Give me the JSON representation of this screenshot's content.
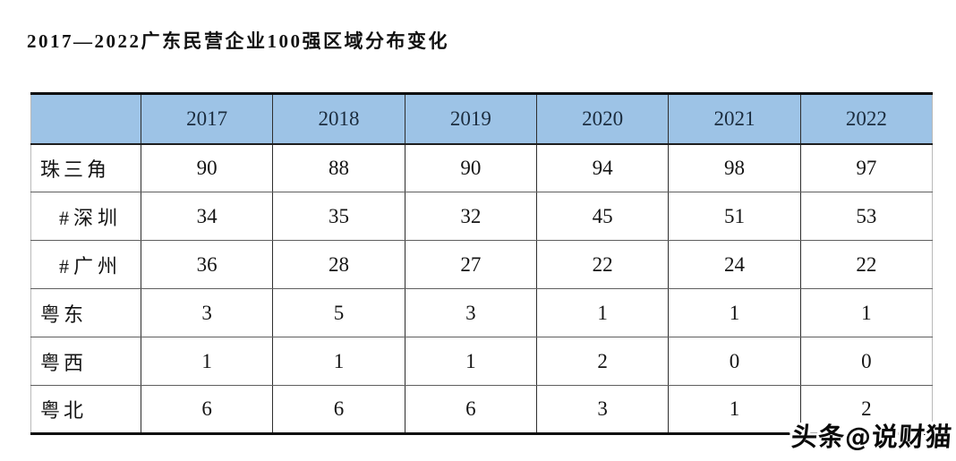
{
  "page": {
    "title": "2017—2022广东民营企业100强区域分布变化"
  },
  "chart_data": {
    "type": "table",
    "title": "2017—2022广东民营企业100强区域分布变化",
    "corner_label": "",
    "columns": [
      "2017",
      "2018",
      "2019",
      "2020",
      "2021",
      "2022"
    ],
    "rows": [
      {
        "label": "珠三角",
        "indent": false,
        "values": [
          90,
          88,
          90,
          94,
          98,
          97
        ]
      },
      {
        "label": "#深圳",
        "indent": true,
        "values": [
          34,
          35,
          32,
          45,
          51,
          53
        ]
      },
      {
        "label": "#广州",
        "indent": true,
        "values": [
          36,
          28,
          27,
          22,
          24,
          22
        ]
      },
      {
        "label": "粤东",
        "indent": false,
        "values": [
          3,
          5,
          3,
          1,
          1,
          1
        ]
      },
      {
        "label": "粤西",
        "indent": false,
        "values": [
          1,
          1,
          1,
          2,
          0,
          0
        ]
      },
      {
        "label": "粤北",
        "indent": false,
        "values": [
          6,
          6,
          6,
          3,
          1,
          2
        ]
      }
    ],
    "layout": {
      "header_background": "#9dc3e6",
      "grid": true
    }
  },
  "watermark": {
    "text": "头条@说财猫"
  },
  "colors": {
    "header_bg": "#9dc3e6",
    "header_text": "#1b2c3e",
    "body_text": "#141414",
    "border_heavy": "#0d0d0d"
  }
}
